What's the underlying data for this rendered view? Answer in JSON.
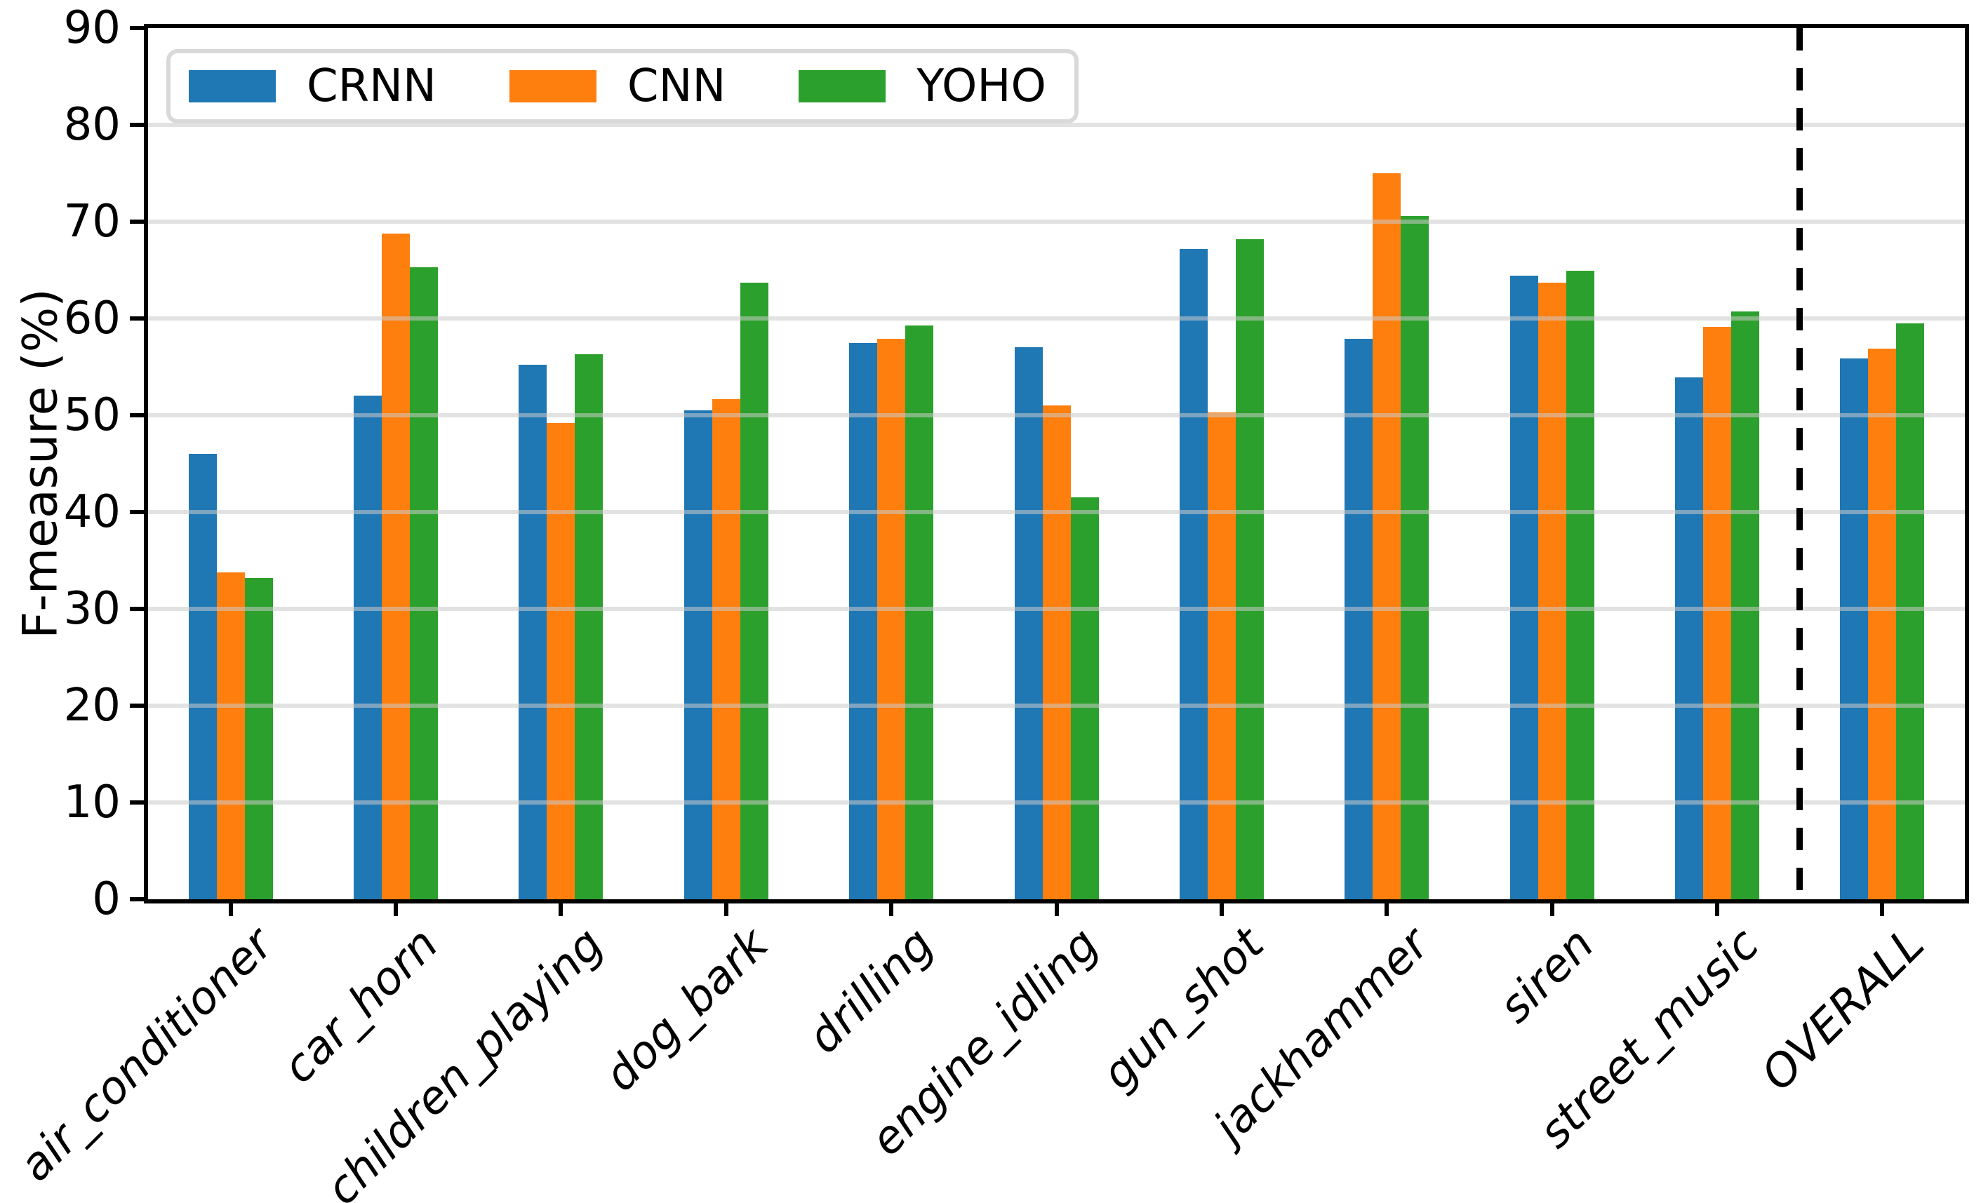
{
  "figure": {
    "background": "#ffffff",
    "text_color": "#000000",
    "grid_color": "#cbcbcb",
    "separator_color": "#000000"
  },
  "chart_data": {
    "type": "bar",
    "title": "",
    "xlabel": "",
    "ylabel": "F-measure (%)",
    "ylim": [
      0,
      90
    ],
    "yticks": [
      0,
      10,
      20,
      30,
      40,
      50,
      60,
      70,
      80,
      90
    ],
    "grid": "horizontal",
    "legend_position": "upper left",
    "legend_entries": [
      "CRNN",
      "CNN",
      "YOHO"
    ],
    "categories": [
      "air_conditioner",
      "car_horn",
      "children_playing",
      "dog_bark",
      "drilling",
      "engine_idling",
      "gun_shot",
      "jackhammer",
      "siren",
      "street_music",
      "OVERALL"
    ],
    "separator_after_category": "street_music",
    "series": [
      {
        "name": "CRNN",
        "color": "#1f77b4",
        "values": [
          46.0,
          52.0,
          55.2,
          50.5,
          57.5,
          57.0,
          67.2,
          57.9,
          64.4,
          53.9,
          55.9
        ]
      },
      {
        "name": "CNN",
        "color": "#ff7f0e",
        "values": [
          33.8,
          68.8,
          49.2,
          51.7,
          57.9,
          51.0,
          50.3,
          75.0,
          63.7,
          59.1,
          56.9
        ]
      },
      {
        "name": "YOHO",
        "color": "#2ca02c",
        "values": [
          33.2,
          65.3,
          56.3,
          63.7,
          59.3,
          41.5,
          68.2,
          70.6,
          64.9,
          60.7,
          59.5
        ]
      }
    ]
  }
}
